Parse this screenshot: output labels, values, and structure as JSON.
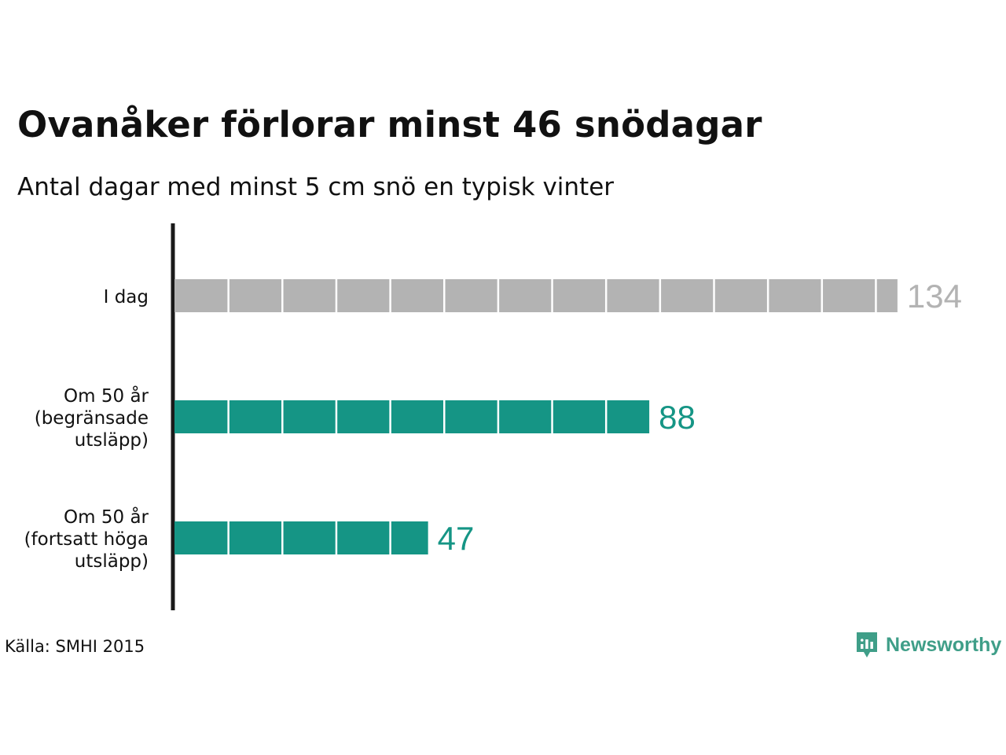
{
  "chart_data": {
    "type": "bar",
    "orientation": "horizontal",
    "title": "Ovanåker förlorar minst 46 snödagar",
    "subtitle": "Antal dagar med minst 5 cm snö en typisk vinter",
    "categories": [
      [
        "I dag"
      ],
      [
        "Om 50 år",
        "(begränsade",
        "utsläpp)"
      ],
      [
        "Om 50 år",
        "(fortsatt höga",
        "utsläpp)"
      ]
    ],
    "values": [
      134,
      88,
      47
    ],
    "value_labels": [
      "134",
      "88",
      "47"
    ],
    "colors": [
      "#b3b3b3",
      "#159585",
      "#159585"
    ],
    "label_colors": [
      "#b3b3b3",
      "#159585",
      "#159585"
    ],
    "segment_size": 10,
    "xlim": [
      0,
      134
    ],
    "grid": false,
    "legend": "none"
  },
  "footer": {
    "source": "Källa: SMHI 2015",
    "brand": "Newsworthy",
    "brand_color": "#3f9e88"
  }
}
